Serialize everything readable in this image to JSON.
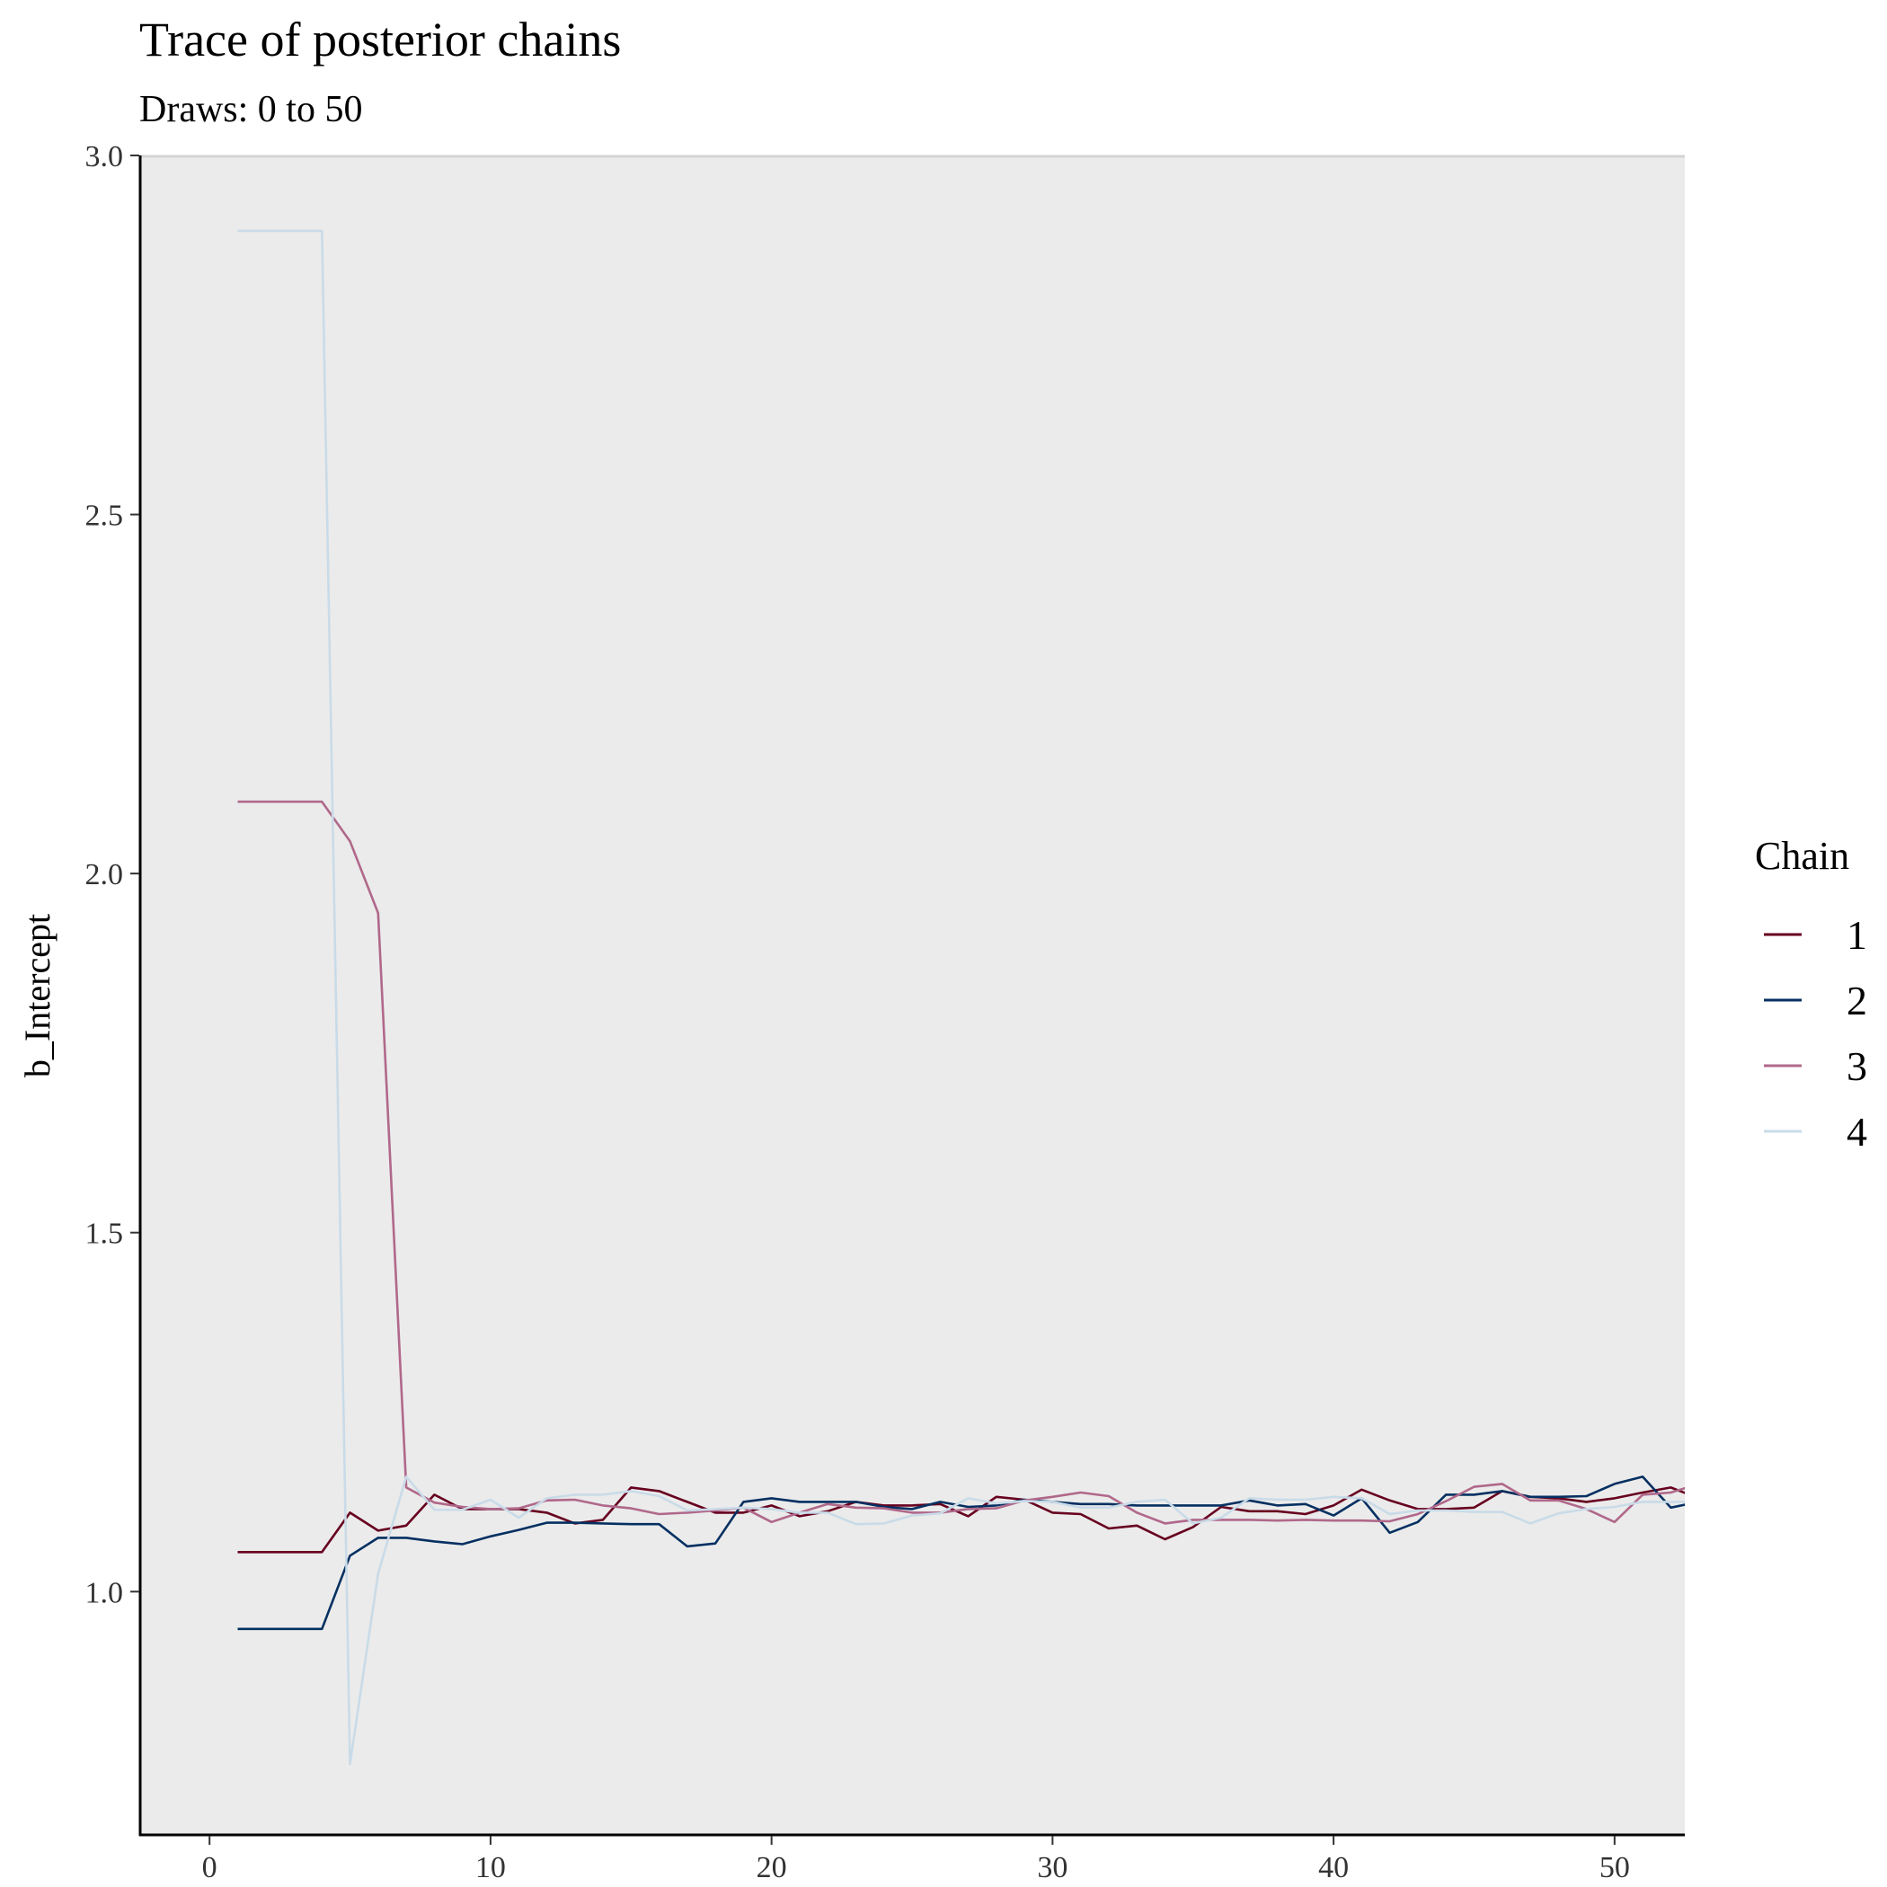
{
  "chart_data": {
    "type": "line",
    "title": "Trace of posterior chains",
    "subtitle": "Draws: 0 to 50",
    "xlabel": "",
    "ylabel": "b_Intercept",
    "xlim": [
      -2.5,
      52.5
    ],
    "ylim": [
      0.66,
      3.0
    ],
    "x_ticks": [
      0,
      10,
      20,
      30,
      40,
      50
    ],
    "y_ticks": [
      1.0,
      1.5,
      2.0,
      2.5,
      3.0
    ],
    "y_tick_labels": [
      "1.0",
      "1.5",
      "2.0",
      "2.5",
      "3.0"
    ],
    "grid": false,
    "legend": {
      "title": "Chain",
      "position": "right"
    },
    "x": [
      1,
      2,
      3,
      4,
      5,
      6,
      7,
      8,
      9,
      10,
      11,
      12,
      13,
      14,
      15,
      16,
      17,
      18,
      19,
      20,
      21,
      22,
      23,
      24,
      25,
      26,
      27,
      28,
      29,
      30,
      31,
      32,
      33,
      34,
      35,
      36,
      37,
      38,
      39,
      40,
      41,
      42,
      43,
      44,
      45,
      46,
      47,
      48,
      49,
      50,
      51,
      52,
      53
    ],
    "series": [
      {
        "name": "1",
        "color": "#67001f",
        "values": [
          1.055,
          1.055,
          1.055,
          1.055,
          1.11,
          1.085,
          1.092,
          1.135,
          1.115,
          1.115,
          1.115,
          1.11,
          1.095,
          1.1,
          1.145,
          1.14,
          1.125,
          1.11,
          1.11,
          1.12,
          1.105,
          1.112,
          1.125,
          1.12,
          1.12,
          1.122,
          1.105,
          1.132,
          1.128,
          1.11,
          1.108,
          1.088,
          1.092,
          1.073,
          1.09,
          1.118,
          1.112,
          1.112,
          1.108,
          1.12,
          1.142,
          1.127,
          1.115,
          1.115,
          1.117,
          1.14,
          1.132,
          1.13,
          1.125,
          1.13,
          1.138,
          1.145,
          1.13
        ]
      },
      {
        "name": "2",
        "color": "#053061",
        "values": [
          0.948,
          0.948,
          0.948,
          0.948,
          1.05,
          1.075,
          1.075,
          1.07,
          1.066,
          1.077,
          1.086,
          1.096,
          1.096,
          1.095,
          1.094,
          1.094,
          1.063,
          1.067,
          1.125,
          1.13,
          1.125,
          1.125,
          1.125,
          1.118,
          1.115,
          1.125,
          1.118,
          1.12,
          1.128,
          1.125,
          1.122,
          1.122,
          1.12,
          1.12,
          1.12,
          1.12,
          1.127,
          1.12,
          1.122,
          1.106,
          1.13,
          1.082,
          1.097,
          1.135,
          1.135,
          1.14,
          1.132,
          1.132,
          1.133,
          1.15,
          1.16,
          1.117,
          1.125
        ]
      },
      {
        "name": "3",
        "color": "#b0688a",
        "values": [
          2.1,
          2.1,
          2.1,
          2.1,
          2.045,
          1.945,
          1.145,
          1.124,
          1.118,
          1.115,
          1.116,
          1.127,
          1.128,
          1.12,
          1.116,
          1.108,
          1.11,
          1.113,
          1.117,
          1.097,
          1.11,
          1.122,
          1.117,
          1.116,
          1.11,
          1.11,
          1.115,
          1.116,
          1.127,
          1.132,
          1.138,
          1.133,
          1.11,
          1.095,
          1.1,
          1.1,
          1.1,
          1.099,
          1.1,
          1.099,
          1.099,
          1.098,
          1.108,
          1.126,
          1.146,
          1.15,
          1.127,
          1.127,
          1.115,
          1.097,
          1.135,
          1.138,
          1.15
        ]
      },
      {
        "name": "4",
        "color": "#c9dbe8",
        "values": [
          2.895,
          2.895,
          2.895,
          2.895,
          0.76,
          1.025,
          1.16,
          1.114,
          1.114,
          1.128,
          1.103,
          1.13,
          1.135,
          1.135,
          1.14,
          1.133,
          1.113,
          1.115,
          1.117,
          1.115,
          1.11,
          1.11,
          1.094,
          1.095,
          1.106,
          1.109,
          1.13,
          1.123,
          1.126,
          1.125,
          1.117,
          1.117,
          1.125,
          1.128,
          1.095,
          1.103,
          1.13,
          1.128,
          1.128,
          1.132,
          1.13,
          1.108,
          1.113,
          1.113,
          1.111,
          1.111,
          1.095,
          1.109,
          1.115,
          1.118,
          1.125,
          1.125,
          1.125
        ]
      }
    ]
  }
}
